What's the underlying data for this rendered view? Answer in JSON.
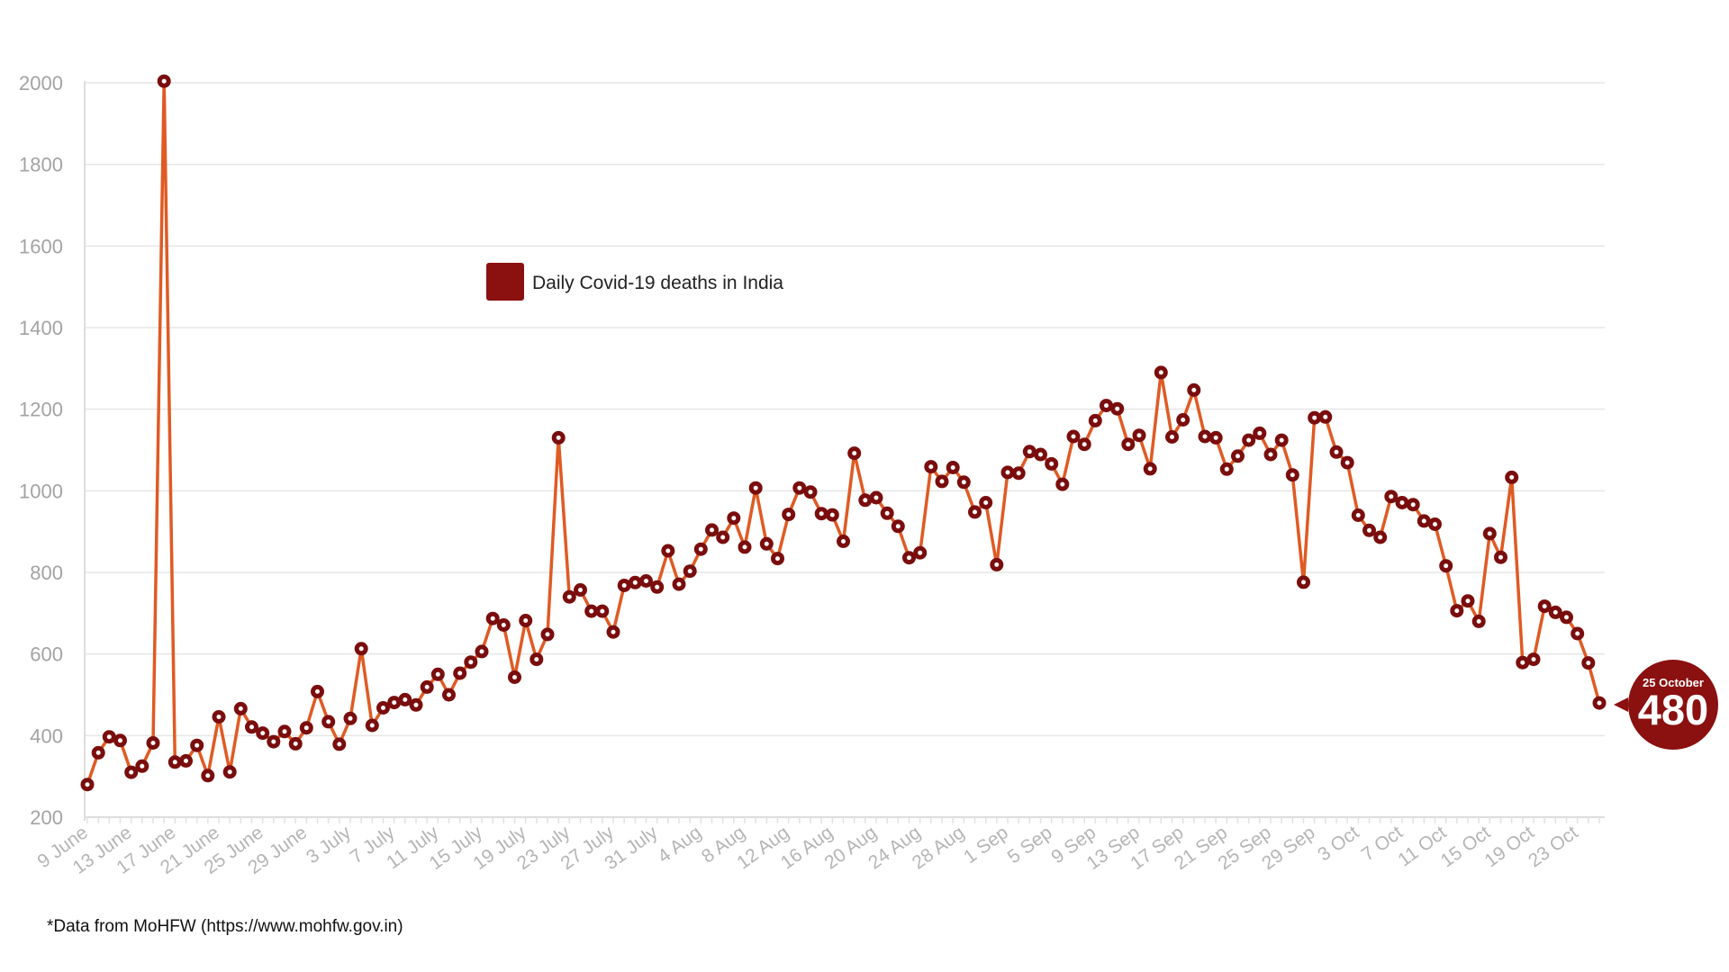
{
  "chart_data": {
    "type": "line",
    "colors": {
      "line": "#e05a24",
      "marker": "#7a0d0d",
      "legend_swatch": "#8b1010",
      "callout": "#8b1010"
    },
    "ylim": [
      200,
      2000
    ],
    "yticks": [
      200,
      400,
      600,
      800,
      1000,
      1200,
      1400,
      1600,
      1800,
      2000
    ],
    "legend": {
      "label": "Daily Covid-19 deaths in India",
      "placement": "top-center"
    },
    "source_note": "*Data from MoHFW (https://www.mohfw.gov.in)",
    "callout": {
      "date": "25 October",
      "value": "480"
    },
    "x_tick_labels": [
      "9 June",
      "13 June",
      "17 June",
      "21 June",
      "25 June",
      "29 June",
      "3 July",
      "7 July",
      "11 July",
      "15 July",
      "19 July",
      "23 July",
      "27 July",
      "31 July",
      "4 Aug",
      "8 Aug",
      "12 Aug",
      "16 Aug",
      "20 Aug",
      "24 Aug",
      "28 Aug",
      "1 Sep",
      "5 Sep",
      "9 Sep",
      "13 Sep",
      "17 Sep",
      "21 Sep",
      "25 Sep",
      "29 Sep",
      "3 Oct",
      "7 Oct",
      "11 Oct",
      "15 Oct",
      "19 Oct",
      "23 Oct"
    ],
    "x_tick_every": 4,
    "series": [
      {
        "name": "Daily Covid-19 deaths in India",
        "values": [
          280,
          358,
          397,
          388,
          310,
          325,
          382,
          2004,
          335,
          338,
          376,
          302,
          446,
          311,
          466,
          421,
          406,
          385,
          410,
          380,
          419,
          508,
          434,
          379,
          442,
          613,
          425,
          468,
          481,
          488,
          475,
          519,
          550,
          500,
          553,
          580,
          606,
          687,
          671,
          543,
          682,
          587,
          648,
          1130,
          740,
          757,
          705,
          705,
          654,
          768,
          775,
          779,
          764,
          853,
          771,
          803,
          857,
          904,
          886,
          933,
          862,
          1007,
          870,
          834,
          942,
          1007,
          997,
          944,
          941,
          876,
          1092,
          977,
          983,
          945,
          913,
          836,
          848,
          1059,
          1023,
          1057,
          1021,
          948,
          971,
          819,
          1045,
          1043,
          1096,
          1089,
          1066,
          1016,
          1133,
          1114,
          1172,
          1209,
          1201,
          1114,
          1136,
          1054,
          1290,
          1132,
          1174,
          1247,
          1133,
          1130,
          1053,
          1085,
          1124,
          1141,
          1089,
          1124,
          1039,
          776,
          1179,
          1181,
          1095,
          1069,
          940,
          903,
          886,
          986,
          971,
          966,
          926,
          918,
          816,
          706,
          730,
          680,
          895,
          837,
          1033,
          579,
          587,
          717,
          702,
          690,
          650,
          578,
          480
        ]
      }
    ]
  }
}
